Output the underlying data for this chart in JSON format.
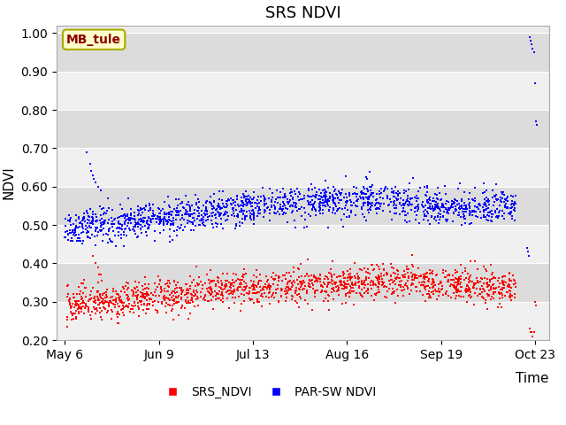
{
  "title": "SRS NDVI",
  "xlabel": "Time",
  "ylabel": "NDVI",
  "ylim": [
    0.2,
    1.02
  ],
  "yticks": [
    0.2,
    0.3,
    0.4,
    0.5,
    0.6,
    0.7,
    0.8,
    0.9,
    1.0
  ],
  "site_label": "MB_tule",
  "site_label_bg": "#FFFFCC",
  "site_label_border": "#AAAA00",
  "legend_labels": [
    "SRS_NDVI",
    "PAR-SW NDVI"
  ],
  "red_color": "#FF0000",
  "blue_color": "#0000FF",
  "bg_color": "#EBEBEB",
  "band_color_dark": "#DCDCDC",
  "band_color_light": "#F0F0F0",
  "marker_size": 3,
  "x_tick_labels": [
    "May 6",
    "Jun 9",
    "Jul 13",
    "Aug 16",
    "Sep 19",
    "Oct 23"
  ],
  "x_tick_positions": [
    0,
    34,
    68,
    102,
    136,
    170
  ]
}
